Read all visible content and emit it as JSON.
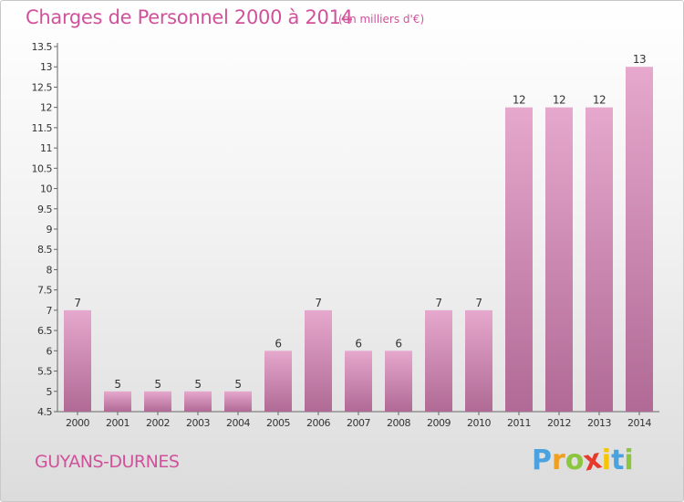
{
  "header": {
    "title": "Charges de Personnel 2000 à 2014",
    "subtitle": "(en milliers d'€)"
  },
  "footer": {
    "location": "GUYANS-DURNES",
    "logo": {
      "letters": [
        "P",
        "r",
        "o",
        "x",
        "i",
        "t",
        "i"
      ],
      "colors": [
        "#4aa3df",
        "#f0a020",
        "#8cc63f",
        "#e8392d",
        "#f7c400",
        "#4aa3df",
        "#8cc63f"
      ]
    }
  },
  "colors": {
    "bar_top": "#e6a8cd",
    "bar_bottom": "#b06a95",
    "text": "#333333",
    "accent": "#d0529a"
  },
  "chart_data": {
    "type": "bar",
    "title": "Charges de Personnel 2000 à 2014",
    "subtitle": "(en milliers d'€)",
    "categories": [
      "2000",
      "2001",
      "2002",
      "2003",
      "2004",
      "2005",
      "2006",
      "2007",
      "2008",
      "2009",
      "2010",
      "2011",
      "2012",
      "2013",
      "2014"
    ],
    "values": [
      7,
      5,
      5,
      5,
      5,
      6,
      7,
      6,
      6,
      7,
      7,
      12,
      12,
      12,
      13
    ],
    "labels": [
      "7",
      "5",
      "5",
      "5",
      "5",
      "6",
      "7",
      "6",
      "6",
      "7",
      "7",
      "12",
      "12",
      "12",
      "13"
    ],
    "ylim": [
      4.5,
      13.5
    ],
    "yticks": [
      "4.5",
      "5",
      "5.5",
      "6",
      "6.5",
      "7",
      "7.5",
      "8",
      "8.5",
      "9",
      "9.5",
      "10",
      "10.5",
      "11",
      "11.5",
      "12",
      "12.5",
      "13",
      "13.5"
    ],
    "xlabel": "",
    "ylabel": "",
    "grid": false,
    "legend": "none"
  }
}
